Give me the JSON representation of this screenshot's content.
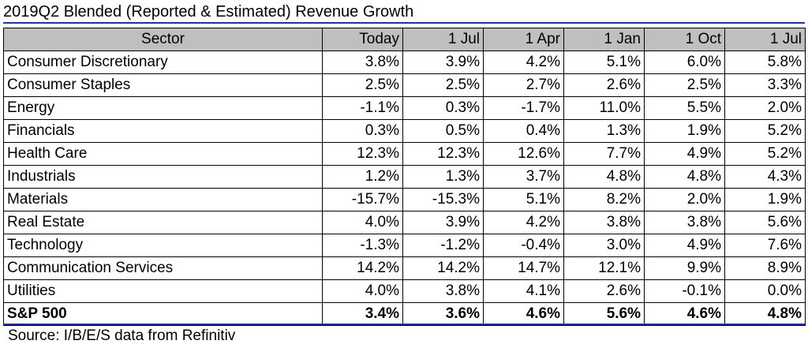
{
  "title": "2019Q2 Blended (Reported & Estimated) Revenue Growth",
  "source": "Source: I/B/E/S data from Refinitiv",
  "colors": {
    "accent_rule": "#1f2fb5",
    "header_bg": "#bfbfbf"
  },
  "chart_data": {
    "type": "table",
    "title": "2019Q2 Blended (Reported & Estimated) Revenue Growth",
    "columns": [
      "Sector",
      "Today",
      "1 Jul",
      "1 Apr",
      "1 Jan",
      "1 Oct",
      "1 Jul"
    ],
    "rows": [
      [
        "Consumer Discretionary",
        "3.8%",
        "3.9%",
        "4.2%",
        "5.1%",
        "6.0%",
        "5.8%"
      ],
      [
        "Consumer Staples",
        "2.5%",
        "2.5%",
        "2.7%",
        "2.6%",
        "2.5%",
        "3.3%"
      ],
      [
        "Energy",
        "-1.1%",
        "0.3%",
        "-1.7%",
        "11.0%",
        "5.5%",
        "2.0%"
      ],
      [
        "Financials",
        "0.3%",
        "0.5%",
        "0.4%",
        "1.3%",
        "1.9%",
        "5.2%"
      ],
      [
        "Health Care",
        "12.3%",
        "12.3%",
        "12.6%",
        "7.7%",
        "4.9%",
        "5.2%"
      ],
      [
        "Industrials",
        "1.2%",
        "1.3%",
        "3.7%",
        "4.8%",
        "4.8%",
        "4.3%"
      ],
      [
        "Materials",
        "-15.7%",
        "-15.3%",
        "5.1%",
        "8.2%",
        "2.0%",
        "1.9%"
      ],
      [
        "Real Estate",
        "4.0%",
        "3.9%",
        "4.2%",
        "3.8%",
        "3.8%",
        "5.6%"
      ],
      [
        "Technology",
        "-1.3%",
        "-1.2%",
        "-0.4%",
        "3.0%",
        "4.9%",
        "7.6%"
      ],
      [
        "Communication Services",
        "14.2%",
        "14.2%",
        "14.7%",
        "12.1%",
        "9.9%",
        "8.9%"
      ],
      [
        "Utilities",
        "4.0%",
        "3.8%",
        "4.1%",
        "2.6%",
        "-0.1%",
        "0.0%"
      ],
      [
        "S&P 500",
        "3.4%",
        "3.6%",
        "4.6%",
        "5.6%",
        "4.6%",
        "4.8%"
      ]
    ],
    "total_row_index": 11
  }
}
